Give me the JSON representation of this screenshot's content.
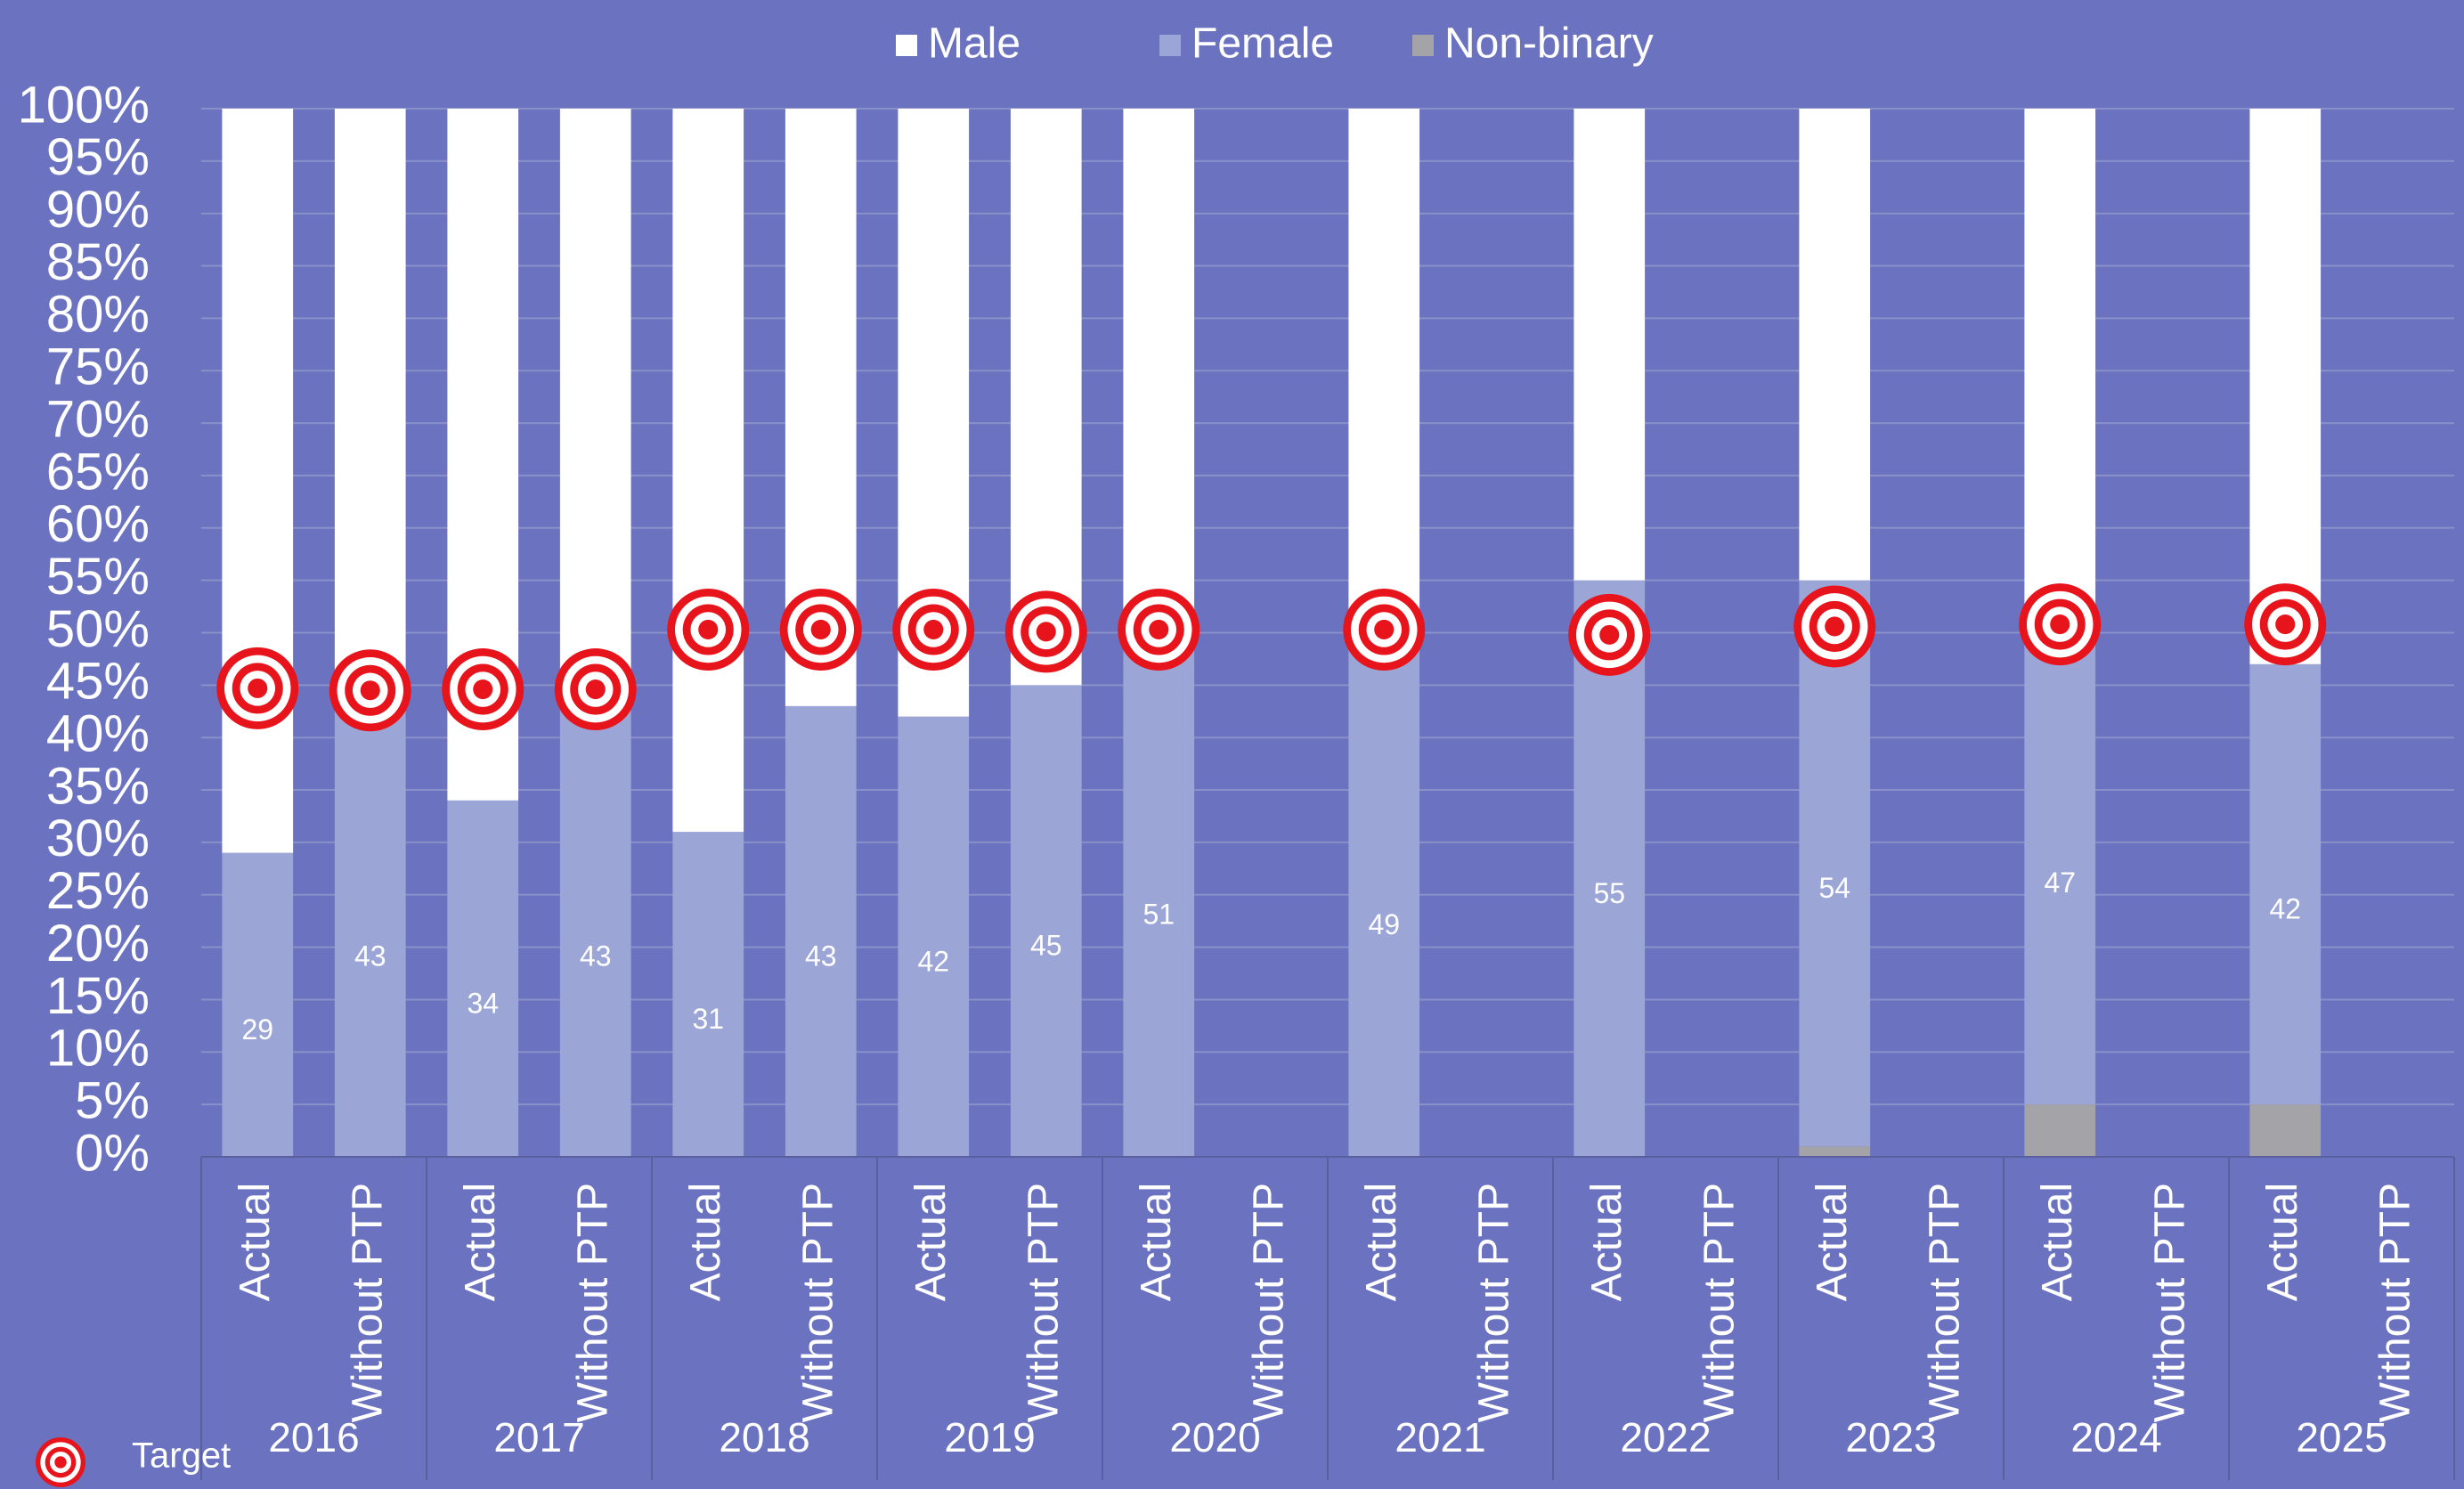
{
  "chart_data": {
    "type": "stacked_bar",
    "categories": [
      "Actual",
      "Without PTP",
      "Actual",
      "Without PTP",
      "Actual",
      "Without PTP",
      "Actual",
      "Without PTP",
      "Actual",
      "Without PTP",
      "Actual",
      "Without PTP",
      "Actual",
      "Without PTP",
      "Actual",
      "Without PTP",
      "Actual",
      "Without PTP",
      "Actual",
      "Without PTP"
    ],
    "groups": [
      "2016",
      "2017",
      "2018",
      "2019",
      "2020",
      "2021",
      "2022",
      "2023",
      "2024",
      "2025"
    ],
    "series": [
      {
        "name": "Non-binary",
        "color": "#a3a3a8",
        "values": [
          0,
          0,
          0,
          0,
          0,
          0,
          0,
          0,
          0,
          null,
          0,
          null,
          0,
          null,
          1,
          null,
          5,
          null,
          5,
          null
        ]
      },
      {
        "name": "Female",
        "color": "#9ca6d6",
        "values": [
          29,
          43,
          34,
          43,
          31,
          43,
          42,
          45,
          51,
          null,
          49,
          null,
          55,
          null,
          54,
          null,
          47,
          null,
          42,
          null
        ],
        "data_labels": true
      },
      {
        "name": "Male",
        "color": "#ffffff",
        "values": [
          71,
          57,
          66,
          57,
          69,
          57,
          58,
          55,
          49,
          null,
          51,
          null,
          45,
          null,
          45,
          null,
          48,
          null,
          53,
          null
        ]
      }
    ],
    "target": {
      "name": "Target",
      "values": [
        44.7,
        44.5,
        44.6,
        44.6,
        50.3,
        50.3,
        50.3,
        50.1,
        50.3,
        null,
        50.3,
        null,
        49.8,
        null,
        50.6,
        null,
        50.8,
        null,
        50.8,
        null
      ]
    },
    "ylim": [
      0,
      100
    ],
    "yticks": [
      {
        "value": 0,
        "label": "0%"
      },
      {
        "value": 5,
        "label": "5%"
      },
      {
        "value": 10,
        "label": "10%"
      },
      {
        "value": 15,
        "label": "15%"
      },
      {
        "value": 20,
        "label": "20%"
      },
      {
        "value": 25,
        "label": "25%"
      },
      {
        "value": 30,
        "label": "30%"
      },
      {
        "value": 35,
        "label": "35%"
      },
      {
        "value": 40,
        "label": "40%"
      },
      {
        "value": 45,
        "label": "45%"
      },
      {
        "value": 50,
        "label": "50%"
      },
      {
        "value": 55,
        "label": "55%"
      },
      {
        "value": 60,
        "label": "60%"
      },
      {
        "value": 65,
        "label": "65%"
      },
      {
        "value": 70,
        "label": "70%"
      },
      {
        "value": 75,
        "label": "75%"
      },
      {
        "value": 80,
        "label": "80%"
      },
      {
        "value": 85,
        "label": "85%"
      },
      {
        "value": 90,
        "label": "90%"
      },
      {
        "value": 95,
        "label": "95%"
      },
      {
        "value": 100,
        "label": "100%"
      }
    ],
    "grid": true
  }
}
